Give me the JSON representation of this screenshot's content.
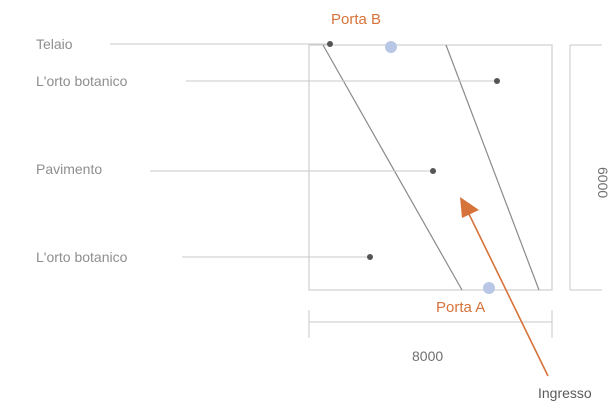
{
  "callouts": [
    {
      "label": "Telaio"
    },
    {
      "label": "L'orto botanico"
    },
    {
      "label": "Pavimento"
    },
    {
      "label": "L'orto botanico"
    }
  ],
  "doors": {
    "a_label": "Porta A",
    "b_label": "Porta B"
  },
  "dimensions": {
    "width_label": "8000",
    "height_label": "6000"
  },
  "entrance_label": "Ingresso",
  "colors": {
    "accent": "#d6733a",
    "door_marker": "#b8c7e6",
    "line": "#c8c8c8",
    "point": "#555555"
  }
}
